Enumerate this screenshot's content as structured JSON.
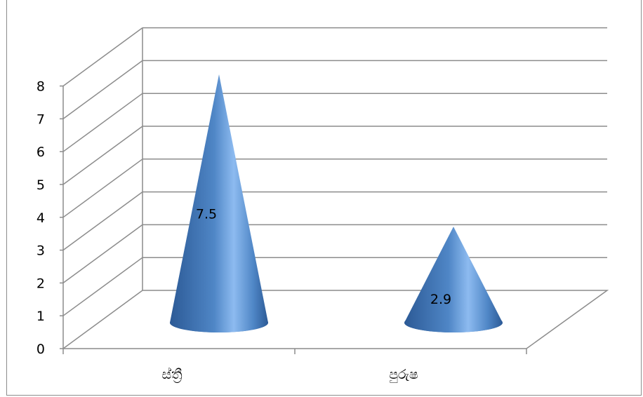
{
  "chart_data": {
    "type": "bar",
    "style": "3d-cone",
    "categories": [
      "ස්ත්‍රී",
      "පුරුෂ"
    ],
    "values": [
      7.5,
      2.9
    ],
    "data_labels": [
      "7.5",
      "2.9"
    ],
    "yticks": [
      "0",
      "1",
      "2",
      "3",
      "4",
      "5",
      "6",
      "7",
      "8"
    ],
    "ylim": [
      0,
      8
    ],
    "grid": true,
    "title": "",
    "xlabel": "",
    "ylabel": "",
    "colors": {
      "cone_dark": "#2c5a96",
      "cone_mid": "#4f86c6",
      "cone_light": "#8dbbf0",
      "grid": "#8c8c8c",
      "axis": "#8c8c8c"
    }
  }
}
